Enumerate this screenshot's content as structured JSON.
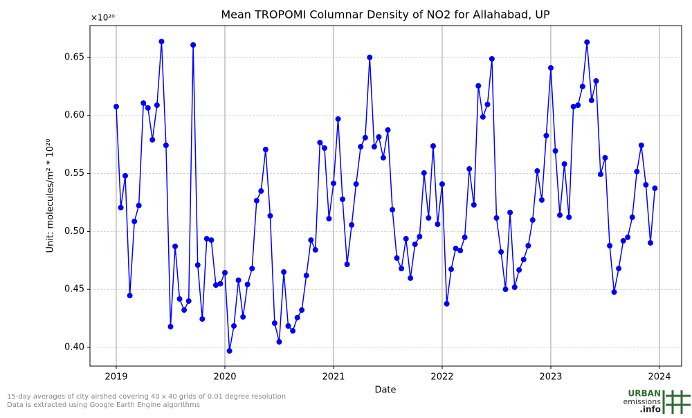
{
  "chart_data": {
    "type": "line",
    "title": "Mean TROPOMI Columnar Density of NO2 for Allahabad, UP",
    "xlabel": "Date",
    "ylabel": "Unit: molecules/m² * 10²⁰",
    "y_offset_label": "×10²⁰",
    "x": [
      2019,
      2019.042,
      2019.083,
      2019.125,
      2019.167,
      2019.208,
      2019.25,
      2019.292,
      2019.333,
      2019.375,
      2019.417,
      2019.458,
      2019.5,
      2019.542,
      2019.583,
      2019.625,
      2019.667,
      2019.708,
      2019.75,
      2019.792,
      2019.833,
      2019.875,
      2019.917,
      2019.958,
      2020,
      2020.042,
      2020.083,
      2020.125,
      2020.167,
      2020.208,
      2020.25,
      2020.292,
      2020.333,
      2020.375,
      2020.417,
      2020.458,
      2020.5,
      2020.542,
      2020.583,
      2020.625,
      2020.667,
      2020.708,
      2020.75,
      2020.792,
      2020.833,
      2020.875,
      2020.917,
      2020.958,
      2021,
      2021.042,
      2021.083,
      2021.125,
      2021.167,
      2021.208,
      2021.25,
      2021.292,
      2021.333,
      2021.375,
      2021.417,
      2021.458,
      2021.5,
      2021.542,
      2021.583,
      2021.625,
      2021.667,
      2021.708,
      2021.75,
      2021.792,
      2021.833,
      2021.875,
      2021.917,
      2021.958,
      2022,
      2022.042,
      2022.083,
      2022.125,
      2022.167,
      2022.208,
      2022.25,
      2022.292,
      2022.333,
      2022.375,
      2022.417,
      2022.458,
      2022.5,
      2022.542,
      2022.583,
      2022.625,
      2022.667,
      2022.708,
      2022.75,
      2022.792,
      2022.833,
      2022.875,
      2022.917,
      2022.958,
      2023,
      2023.042,
      2023.083,
      2023.125,
      2023.167,
      2023.208,
      2023.25,
      2023.292,
      2023.333,
      2023.375,
      2023.417,
      2023.458,
      2023.5,
      2023.542,
      2023.583,
      2023.625,
      2023.667,
      2023.708,
      2023.75,
      2023.792,
      2023.833,
      2023.875,
      2023.917,
      2023.958
    ],
    "series": [
      {
        "color": "#0000ff",
        "values": [
          0.6076,
          0.5205,
          0.548,
          0.4447,
          0.5086,
          0.5223,
          0.6106,
          0.6064,
          0.579,
          0.6088,
          0.6637,
          0.5742,
          0.4179,
          0.4871,
          0.4418,
          0.4322,
          0.44,
          0.6607,
          0.471,
          0.4245,
          0.4937,
          0.4925,
          0.4537,
          0.4549,
          0.4644,
          0.397,
          0.4185,
          0.4579,
          0.4263,
          0.4543,
          0.468,
          0.5265,
          0.5348,
          0.5706,
          0.5134,
          0.4209,
          0.4048,
          0.465,
          0.4185,
          0.4143,
          0.4257,
          0.4322,
          0.462,
          0.4925,
          0.4841,
          0.5766,
          0.5718,
          0.511,
          0.5414,
          0.5969,
          0.5277,
          0.4716,
          0.5056,
          0.5408,
          0.573,
          0.5808,
          0.65,
          0.573,
          0.5814,
          0.5635,
          0.5874,
          0.5187,
          0.477,
          0.468,
          0.4937,
          0.4597,
          0.4889,
          0.4955,
          0.5504,
          0.5116,
          0.5736,
          0.5062,
          0.5408,
          0.4376,
          0.4674,
          0.4853,
          0.4835,
          0.4949,
          0.5539,
          0.5229,
          0.6255,
          0.5987,
          0.6094,
          0.6488,
          0.5116,
          0.4823,
          0.4501,
          0.5163,
          0.4519,
          0.4668,
          0.4758,
          0.4877,
          0.5098,
          0.5521,
          0.5271,
          0.5826,
          0.641,
          0.5694,
          0.514,
          0.5581,
          0.5122,
          0.6076,
          0.6088,
          0.6249,
          0.6631,
          0.613,
          0.6297,
          0.5492,
          0.5635,
          0.4877,
          0.4477,
          0.468,
          0.4919,
          0.4949,
          0.5122,
          0.5516,
          0.5742,
          0.5402,
          0.4901,
          0.5372
        ]
      }
    ],
    "xlim": [
      2018.758,
      2024.204
    ],
    "xticks": [
      2019,
      2020,
      2021,
      2022,
      2023,
      2024
    ],
    "ylim": [
      0.3839,
      0.6774
    ],
    "yticks": [
      {
        "value": 0.4,
        "label": "0.40"
      },
      0.45,
      {
        "value": 0.5,
        "label": "0.50"
      },
      0.55,
      {
        "value": 0.6,
        "label": "0.60"
      },
      0.65
    ],
    "grid": true
  },
  "footer": {
    "notes": [
      "15-day averages of city airshed covering 40 x 40 grids of 0.01 degree resolution",
      "Data is extracted using Google Earth Engine algorithms"
    ],
    "logo": [
      "URBAN",
      "emissions",
      ".info"
    ]
  }
}
